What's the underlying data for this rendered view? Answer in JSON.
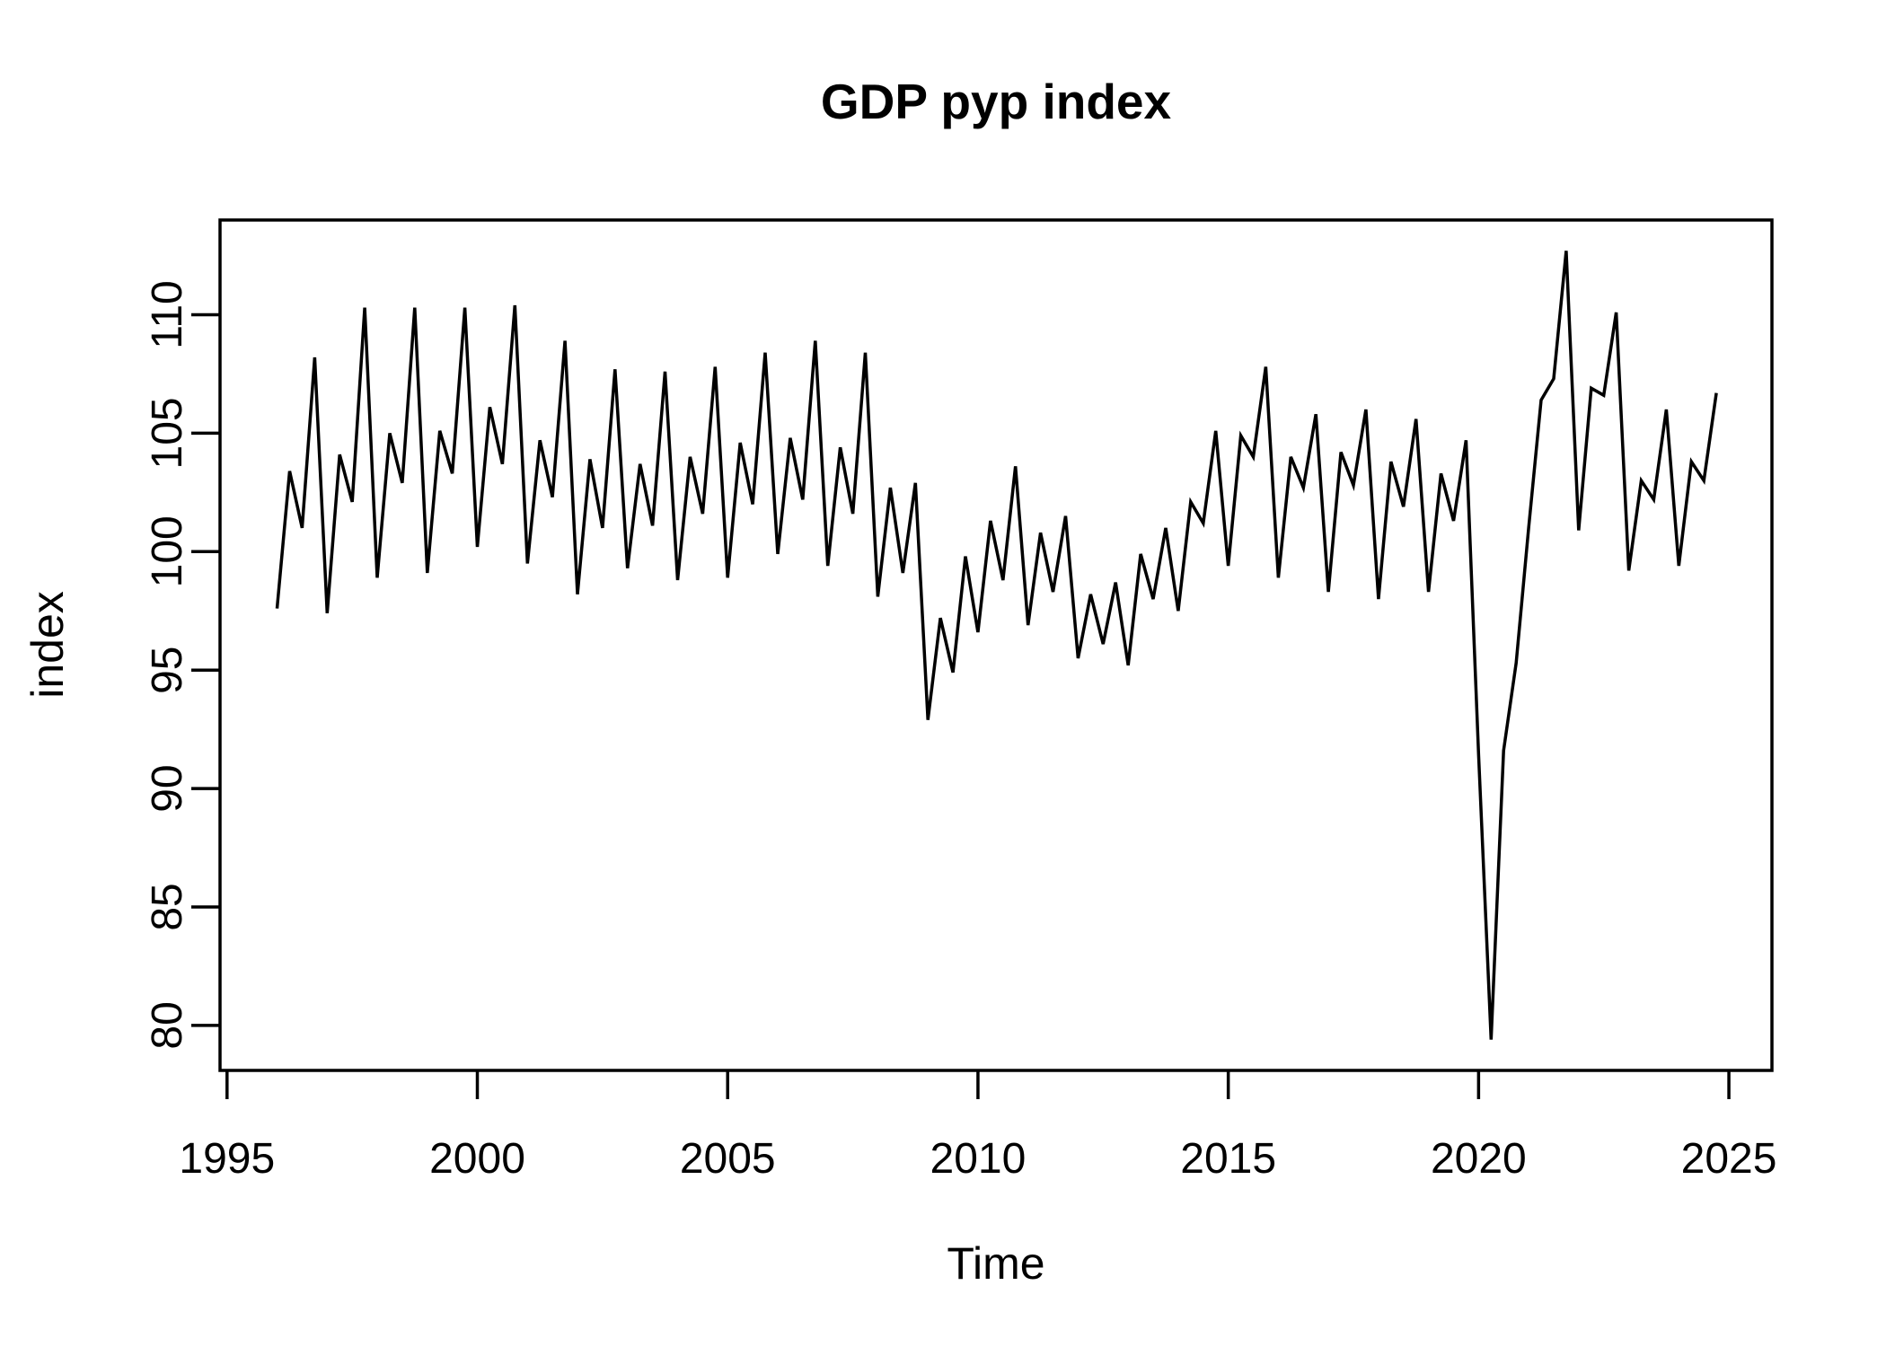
{
  "chart_data": {
    "type": "line",
    "title": "GDP pyp index",
    "xlabel": "Time",
    "ylabel": "index",
    "x_ticks": [
      1995,
      2000,
      2005,
      2010,
      2015,
      2020,
      2025
    ],
    "y_ticks": [
      80,
      85,
      90,
      95,
      100,
      105,
      110
    ],
    "xlim": [
      1994.86,
      2025.86
    ],
    "ylim": [
      78.1,
      114.0
    ],
    "grid": "off",
    "legend": "none",
    "line_color": "#000000",
    "background_color": "#ffffff",
    "frequency": 4,
    "start": 1996.0,
    "end": 2024.75,
    "series": [
      {
        "name": "GDP pyp index",
        "values": [
          97.6,
          103.4,
          101.0,
          108.2,
          97.4,
          104.1,
          102.1,
          110.3,
          98.9,
          105.0,
          102.9,
          110.3,
          99.1,
          105.1,
          103.3,
          110.3,
          100.2,
          106.1,
          103.7,
          110.4,
          99.5,
          104.7,
          102.3,
          108.9,
          98.2,
          103.9,
          101.0,
          107.7,
          99.3,
          103.7,
          101.1,
          107.6,
          98.8,
          104.0,
          101.6,
          107.8,
          98.9,
          104.6,
          102.0,
          108.4,
          99.9,
          104.8,
          102.2,
          108.9,
          99.4,
          104.4,
          101.6,
          108.4,
          98.1,
          102.7,
          99.1,
          102.9,
          92.9,
          97.2,
          94.9,
          99.8,
          96.6,
          101.3,
          98.8,
          103.6,
          96.9,
          100.8,
          98.3,
          101.5,
          95.5,
          98.2,
          96.1,
          98.7,
          95.2,
          99.9,
          98.0,
          101.0,
          97.5,
          102.1,
          101.2,
          105.1,
          99.4,
          104.9,
          104.0,
          107.8,
          98.9,
          104.0,
          102.7,
          105.8,
          98.3,
          104.2,
          102.8,
          106.0,
          98.0,
          103.8,
          101.9,
          105.6,
          98.3,
          103.3,
          101.3,
          104.7,
          91.4,
          79.4,
          91.6,
          95.3,
          101.0,
          106.4,
          107.3,
          112.7,
          100.9,
          106.9,
          106.6,
          110.1,
          99.2,
          103.0,
          102.2,
          106.0,
          99.4,
          103.8,
          103.0,
          106.7
        ]
      }
    ]
  }
}
